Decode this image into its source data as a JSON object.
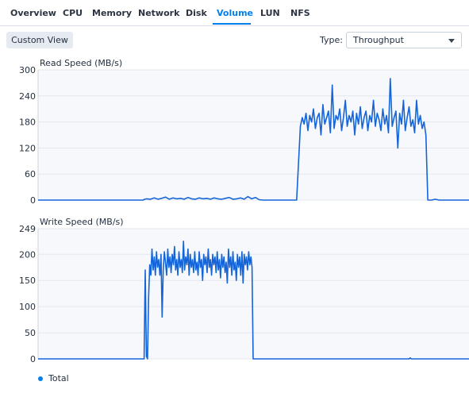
{
  "tabs": [
    {
      "label": "Overview"
    },
    {
      "label": "CPU"
    },
    {
      "label": "Memory"
    },
    {
      "label": "Network"
    },
    {
      "label": "Disk"
    },
    {
      "label": "Volume",
      "active": true
    },
    {
      "label": "LUN"
    },
    {
      "label": "NFS"
    }
  ],
  "toolbar": {
    "custom_view_label": "Custom View",
    "type_label": "Type:",
    "type_value": "Throughput"
  },
  "colors": {
    "accent": "#057feb",
    "series": "#1565d8",
    "plot_bg": "#f6f8fc",
    "grid": "#e3e7ef"
  },
  "legend": {
    "total_label": "Total"
  },
  "chart_data": [
    {
      "type": "line",
      "title": "Read Speed (MB/s)",
      "ylim": [
        0,
        300
      ],
      "yticks": [
        0,
        60,
        120,
        180,
        240,
        300
      ],
      "series": [
        {
          "name": "Total",
          "points": [
            [
              0,
              0
            ],
            [
              10,
              0
            ],
            [
              28,
              0
            ],
            [
              28.5,
              2
            ],
            [
              29,
              3
            ],
            [
              30,
              2
            ],
            [
              31,
              5
            ],
            [
              32,
              2
            ],
            [
              33,
              4
            ],
            [
              34,
              7
            ],
            [
              35,
              2
            ],
            [
              36,
              5
            ],
            [
              37,
              3
            ],
            [
              38,
              4
            ],
            [
              39,
              2
            ],
            [
              40,
              6
            ],
            [
              41,
              3
            ],
            [
              42,
              2
            ],
            [
              43,
              5
            ],
            [
              44,
              3
            ],
            [
              45,
              4
            ],
            [
              46,
              2
            ],
            [
              47,
              5
            ],
            [
              48,
              3
            ],
            [
              49,
              2
            ],
            [
              50,
              4
            ],
            [
              51,
              6
            ],
            [
              52,
              2
            ],
            [
              53,
              3
            ],
            [
              54,
              5
            ],
            [
              55,
              2
            ],
            [
              56,
              8
            ],
            [
              57,
              3
            ],
            [
              58,
              6
            ],
            [
              59,
              1
            ],
            [
              60,
              0
            ],
            [
              69,
              0
            ],
            [
              70,
              170
            ],
            [
              70.5,
              190
            ],
            [
              71,
              175
            ],
            [
              71.5,
              200
            ],
            [
              72,
              160
            ],
            [
              72.5,
              195
            ],
            [
              73,
              180
            ],
            [
              73.5,
              210
            ],
            [
              74,
              165
            ],
            [
              74.5,
              190
            ],
            [
              75,
              200
            ],
            [
              75.5,
              150
            ],
            [
              76,
              220
            ],
            [
              76.5,
              175
            ],
            [
              77,
              190
            ],
            [
              77.5,
              205
            ],
            [
              78,
              155
            ],
            [
              78.5,
              265
            ],
            [
              79,
              165
            ],
            [
              79.5,
              195
            ],
            [
              80,
              185
            ],
            [
              80.5,
              210
            ],
            [
              81,
              160
            ],
            [
              81.5,
              190
            ],
            [
              82,
              230
            ],
            [
              82.5,
              170
            ],
            [
              83,
              195
            ],
            [
              83.5,
              180
            ],
            [
              84,
              205
            ],
            [
              84.5,
              150
            ],
            [
              85,
              200
            ],
            [
              85.5,
              175
            ],
            [
              86,
              215
            ],
            [
              86.5,
              165
            ],
            [
              87,
              190
            ],
            [
              87.5,
              205
            ],
            [
              88,
              160
            ],
            [
              88.5,
              195
            ],
            [
              89,
              180
            ],
            [
              89.5,
              230
            ],
            [
              90,
              170
            ],
            [
              90.5,
              200
            ],
            [
              91,
              185
            ],
            [
              91.5,
              160
            ],
            [
              92,
              210
            ],
            [
              92.5,
              175
            ],
            [
              93,
              195
            ],
            [
              93.5,
              155
            ],
            [
              94,
              280
            ],
            [
              94.5,
              170
            ],
            [
              95,
              190
            ],
            [
              95.5,
              205
            ],
            [
              96,
              120
            ],
            [
              96.5,
              200
            ],
            [
              97,
              175
            ],
            [
              97.5,
              230
            ],
            [
              98,
              160
            ],
            [
              98.5,
              190
            ],
            [
              99,
              215
            ],
            [
              99.5,
              170
            ],
            [
              100,
              185
            ],
            [
              100.5,
              155
            ],
            [
              101,
              230
            ],
            [
              101.5,
              175
            ],
            [
              102,
              195
            ],
            [
              102.5,
              165
            ],
            [
              103,
              180
            ],
            [
              103.5,
              150
            ],
            [
              104,
              0
            ],
            [
              105,
              0
            ],
            [
              106,
              2
            ],
            [
              107,
              0
            ],
            [
              115,
              0
            ]
          ]
        }
      ]
    },
    {
      "type": "line",
      "title": "Write Speed (MB/s)",
      "ylim": [
        0,
        249
      ],
      "yticks": [
        0,
        50,
        100,
        150,
        200,
        249
      ],
      "series": [
        {
          "name": "Total",
          "points": [
            [
              0,
              0
            ],
            [
              28,
              0
            ],
            [
              28.3,
              0
            ],
            [
              28.6,
              170
            ],
            [
              28.9,
              5
            ],
            [
              29.2,
              0
            ],
            [
              29.5,
              120
            ],
            [
              29.8,
              180
            ],
            [
              30.1,
              160
            ],
            [
              30.4,
              210
            ],
            [
              30.7,
              170
            ],
            [
              31,
              195
            ],
            [
              31.3,
              160
            ],
            [
              31.6,
              205
            ],
            [
              31.9,
              175
            ],
            [
              32.2,
              190
            ],
            [
              32.5,
              160
            ],
            [
              32.8,
              200
            ],
            [
              33.1,
              80
            ],
            [
              33.4,
              170
            ],
            [
              33.7,
              205
            ],
            [
              34,
              185
            ],
            [
              34.3,
              160
            ],
            [
              34.6,
              210
            ],
            [
              34.9,
              175
            ],
            [
              35.2,
              195
            ],
            [
              35.5,
              165
            ],
            [
              35.8,
              200
            ],
            [
              36.1,
              180
            ],
            [
              36.4,
              215
            ],
            [
              36.7,
              170
            ],
            [
              37,
              190
            ],
            [
              37.3,
              160
            ],
            [
              37.6,
              205
            ],
            [
              37.9,
              175
            ],
            [
              38.2,
              190
            ],
            [
              38.5,
              165
            ],
            [
              38.8,
              225
            ],
            [
              39.1,
              170
            ],
            [
              39.4,
              195
            ],
            [
              39.7,
              180
            ],
            [
              40,
              210
            ],
            [
              40.3,
              160
            ],
            [
              40.6,
              200
            ],
            [
              40.9,
              175
            ],
            [
              41.2,
              190
            ],
            [
              41.5,
              165
            ],
            [
              41.8,
              205
            ],
            [
              42.1,
              170
            ],
            [
              42.4,
              185
            ],
            [
              42.7,
              160
            ],
            [
              43,
              205
            ],
            [
              43.3,
              175
            ],
            [
              43.6,
              190
            ],
            [
              43.9,
              150
            ],
            [
              44.2,
              200
            ],
            [
              44.5,
              180
            ],
            [
              44.8,
              195
            ],
            [
              45.1,
              165
            ],
            [
              45.4,
              210
            ],
            [
              45.7,
              175
            ],
            [
              46,
              190
            ],
            [
              46.3,
              160
            ],
            [
              46.6,
              200
            ],
            [
              46.9,
              180
            ],
            [
              47.2,
              195
            ],
            [
              47.5,
              165
            ],
            [
              47.8,
              205
            ],
            [
              48.1,
              170
            ],
            [
              48.4,
              190
            ],
            [
              48.7,
              155
            ],
            [
              49,
              200
            ],
            [
              49.3,
              175
            ],
            [
              49.6,
              195
            ],
            [
              49.9,
              165
            ],
            [
              50.2,
              185
            ],
            [
              50.5,
              145
            ],
            [
              50.8,
              210
            ],
            [
              51.1,
              175
            ],
            [
              51.4,
              195
            ],
            [
              51.7,
              160
            ],
            [
              52,
              205
            ],
            [
              52.3,
              170
            ],
            [
              52.6,
              185
            ],
            [
              52.9,
              150
            ],
            [
              53.2,
              200
            ],
            [
              53.5,
              175
            ],
            [
              53.8,
              195
            ],
            [
              54.1,
              160
            ],
            [
              54.4,
              205
            ],
            [
              54.7,
              145
            ],
            [
              55,
              200
            ],
            [
              55.3,
              180
            ],
            [
              55.6,
              195
            ],
            [
              55.9,
              170
            ],
            [
              56.2,
              205
            ],
            [
              56.5,
              180
            ],
            [
              56.8,
              195
            ],
            [
              57.1,
              175
            ],
            [
              57.4,
              0
            ],
            [
              58,
              0
            ],
            [
              99,
              0
            ],
            [
              99.3,
              2
            ],
            [
              99.6,
              0
            ],
            [
              115,
              0
            ]
          ]
        }
      ]
    }
  ]
}
